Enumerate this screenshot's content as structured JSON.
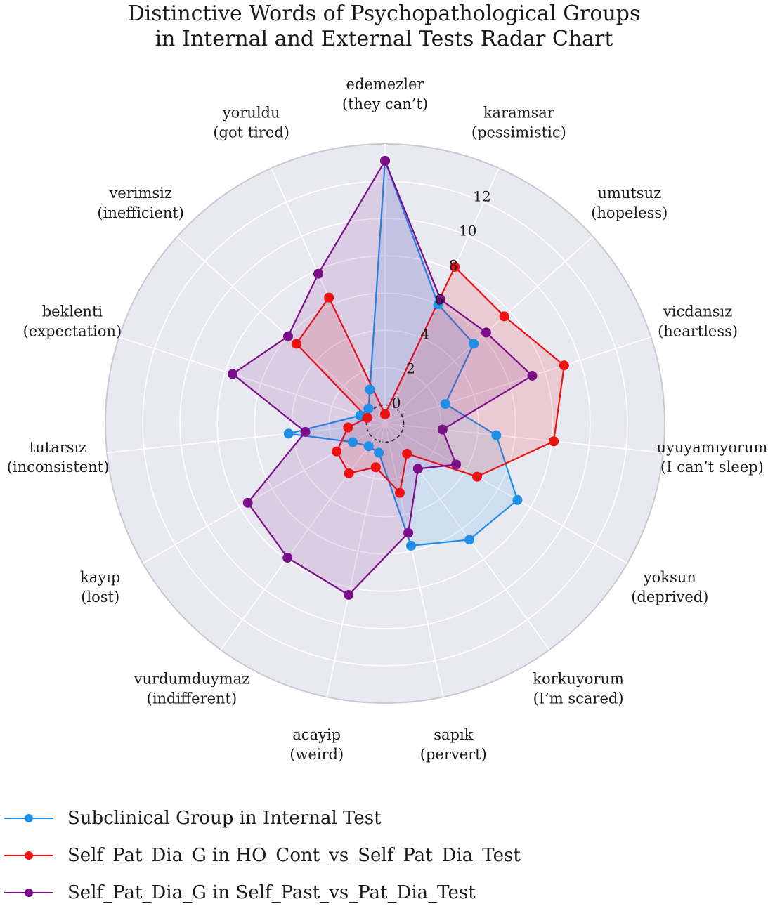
{
  "chart_data": {
    "type": "radar",
    "title_lines": [
      "Distinctive Words of Psychopathological Groups",
      "in Internal and External Tests Radar Chart"
    ],
    "categories": [
      [
        "edemezler",
        "(they can’t)"
      ],
      [
        "karamsar",
        "(pessimistic)"
      ],
      [
        "umutsuz",
        "(hopeless)"
      ],
      [
        "vicdansız",
        "(heartless)"
      ],
      [
        "uyuyamıyorum",
        "(I can’t sleep)"
      ],
      [
        "yoksun",
        "(deprived)"
      ],
      [
        "korkuyorum",
        "(I’m scared)"
      ],
      [
        "sapık",
        "(pervert)"
      ],
      [
        "acayip",
        "(weird)"
      ],
      [
        "vurdumduymaz",
        "(indifferent)"
      ],
      [
        "kayıp",
        "(lost)"
      ],
      [
        "tutarsız",
        "(inconsistent)"
      ],
      [
        "beklenti",
        "(expectation)"
      ],
      [
        "verimsiz",
        "(inefficient)"
      ],
      [
        "yoruldu",
        "(got tired)"
      ]
    ],
    "radial_ticks": [
      "0",
      "2",
      "4",
      "6",
      "8",
      "10",
      "12"
    ],
    "r_offset": -1,
    "r_max": 14,
    "series": [
      {
        "name": "Subclinical Group in Internal Test",
        "color": "#1f8fe8",
        "values": [
          13.1,
          6.0,
          5.4,
          2.4,
          5.0,
          7.2,
          6.7,
          5.7,
          0.6,
          0.5,
          1.0,
          4.2,
          0.4,
          0.2,
          1.0
        ]
      },
      {
        "name": "Self_Pat_Dia_G in HO_Cont_vs_Self_Pat_Dia_Test",
        "color": "#ee1111",
        "values": [
          -0.5,
          8.2,
          7.6,
          9.1,
          8.1,
          4.7,
          1.0,
          2.8,
          1.4,
          2.3,
          2.0,
          1.0,
          0.0,
          5.4,
          6.4
        ]
      },
      {
        "name": "Self_Pat_Dia_G in Self_Past_vs_Pat_Dia_Test",
        "color": "#7b0f8a",
        "values": [
          13.1,
          6.3,
          6.3,
          7.3,
          2.1,
          3.4,
          2.0,
          5.0,
          8.4,
          7.9,
          7.5,
          3.3,
          7.6,
          6.0,
          7.8
        ]
      }
    ]
  }
}
